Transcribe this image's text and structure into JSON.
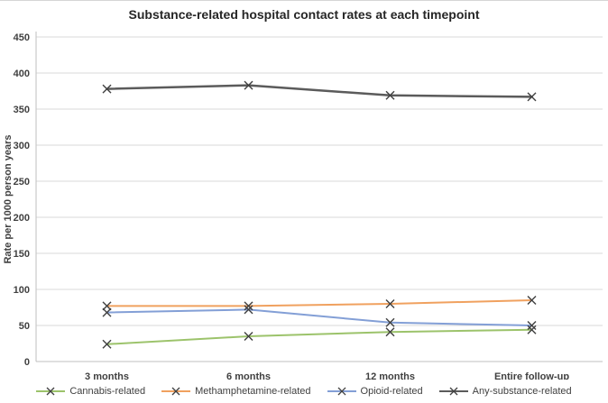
{
  "chart_data": {
    "type": "line",
    "title": "Substance-related hospital contact rates at each timepoint",
    "ylabel": "Rate per 1000 person years",
    "xlabel": "",
    "categories": [
      "3 months",
      "6 months",
      "12 months",
      "Entire follow-up"
    ],
    "series": [
      {
        "name": "Cannabis-related",
        "color": "#9CC36B",
        "values": [
          24,
          35,
          41,
          44
        ]
      },
      {
        "name": "Methamphetamine-related",
        "color": "#F0A15F",
        "values": [
          77,
          77,
          80,
          85
        ]
      },
      {
        "name": "Opioid-related",
        "color": "#839FD6",
        "values": [
          68,
          72,
          54,
          50
        ]
      },
      {
        "name": "Any-substance-related",
        "color": "#5B5B5B",
        "values": [
          378,
          383,
          369,
          367
        ]
      }
    ],
    "ylim": [
      0,
      450
    ],
    "yticks": [
      0,
      50,
      100,
      150,
      200,
      250,
      300,
      350,
      400,
      450
    ],
    "grid": true,
    "gridline_color": "#D9D9D9",
    "axis_color": "#BFBFBF",
    "marker": "x",
    "marker_color": "#404040",
    "legend_position": "bottom"
  }
}
